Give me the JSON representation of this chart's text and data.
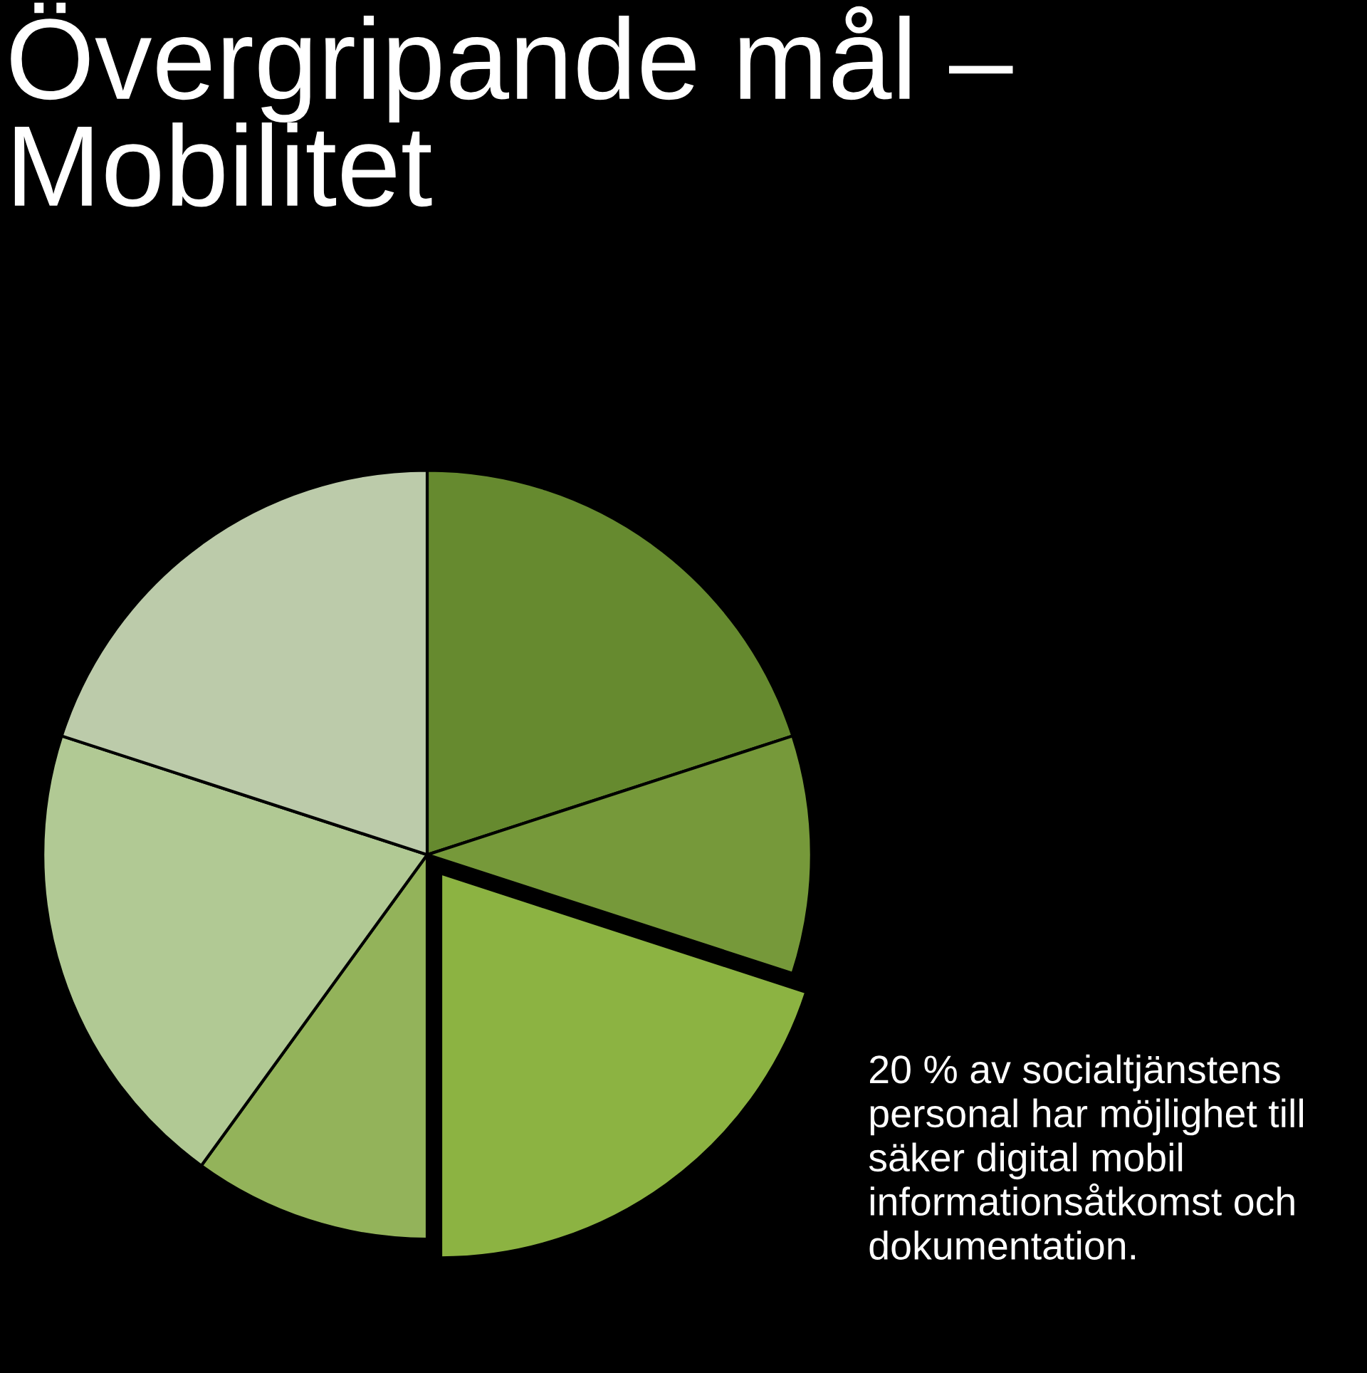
{
  "chart_data": {
    "type": "pie",
    "title": "Övergripande mål – Mobilitet",
    "categories": [
      null,
      null,
      null,
      null,
      null,
      null
    ],
    "values": [
      20,
      10,
      20,
      10,
      20,
      20
    ],
    "colors": [
      "#668a2f",
      "#76993a",
      "#8cb342",
      "#93b35a",
      "#b1c994",
      "#bccbaa"
    ],
    "annotations": [
      "20 % av socialtjänstens personal har möjlighet till säker digital mobil informationsåtkomst och dokumentation."
    ]
  }
}
